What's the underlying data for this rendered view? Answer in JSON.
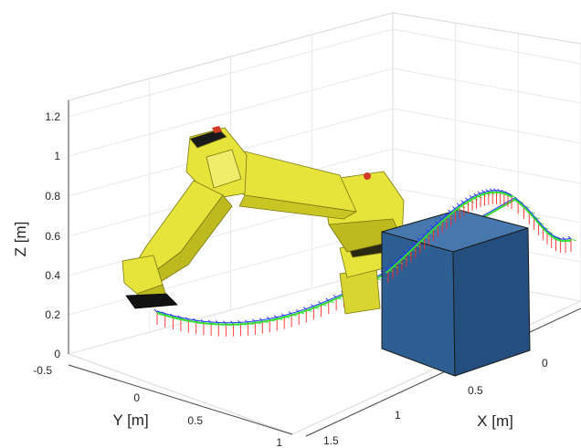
{
  "axes": {
    "z_label": "Z [m]",
    "y_label": "Y [m]",
    "x_label": "X [m]",
    "z_ticks": [
      "0",
      "0.2",
      "0.4",
      "0.6",
      "0.8",
      "1",
      "1.2"
    ],
    "y_ticks": [
      "-0.5",
      "0",
      "0.5",
      "1"
    ],
    "x_ticks": [
      "1.5",
      "1",
      "0.5",
      "0"
    ],
    "grid": true,
    "box": true
  },
  "colors": {
    "robot_body": "#e6e33a",
    "robot_shadow": "#8c8a14",
    "gripper": "#111111",
    "accent_red": "#d43a2a",
    "obstacle": "#2e5f93",
    "path_red": "#ff2a2a",
    "path_green": "#33dd33",
    "path_blue": "#2233ff"
  },
  "objects": {
    "robot_arm": "industrial-robot-arm",
    "obstacle": "blue-box-obstacle",
    "trajectory": "end-effector-frame-trajectory"
  }
}
